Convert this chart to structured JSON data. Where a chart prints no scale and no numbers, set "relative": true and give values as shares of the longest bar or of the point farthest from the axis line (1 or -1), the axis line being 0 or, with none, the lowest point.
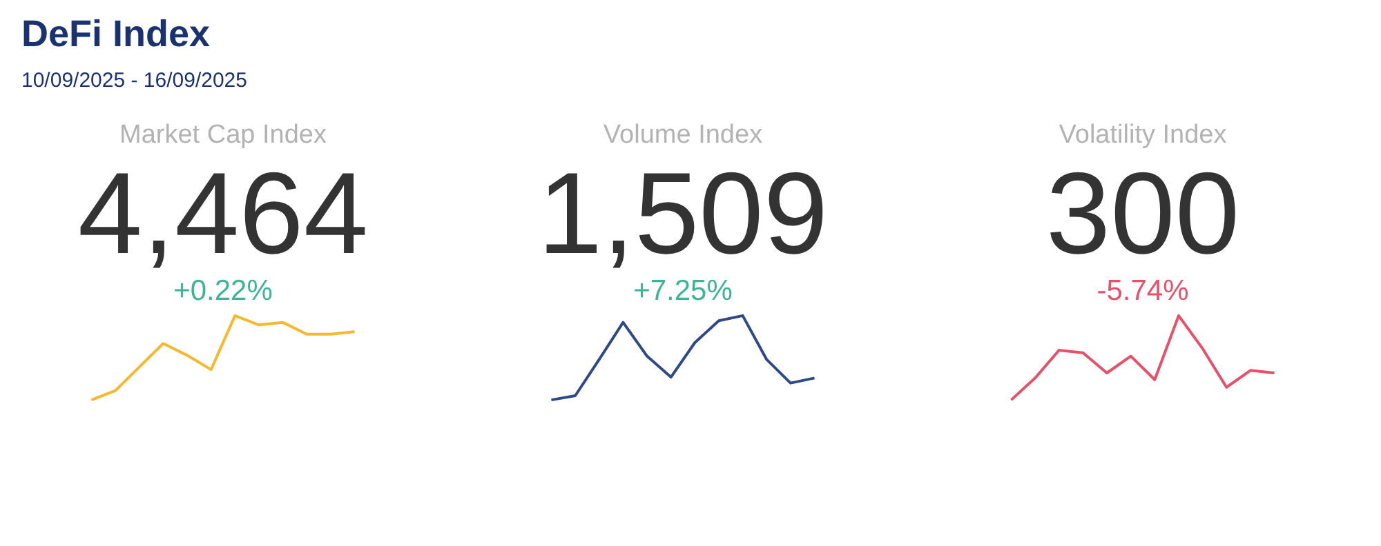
{
  "chart_data": [
    {
      "type": "other",
      "title": "DeFi Index",
      "subtitle": "10/09/2025 - 16/09/2025"
    },
    {
      "type": "line",
      "relative": true,
      "title": "Market Cap Index",
      "annotations": [
        "4,464",
        "+0.22%"
      ],
      "categories": [
        null,
        null,
        null,
        null,
        null,
        null,
        null,
        null,
        null,
        null,
        null,
        null
      ],
      "series": [
        {
          "color": "#f5b82e",
          "values": [
            0,
            0.11,
            0.39,
            0.67,
            0.53,
            0.36,
            1,
            0.89,
            0.92,
            0.78,
            0.78,
            0.81
          ]
        }
      ]
    },
    {
      "type": "line",
      "relative": true,
      "title": "Volume Index",
      "annotations": [
        "1,509",
        "+7.25%"
      ],
      "categories": [
        null,
        null,
        null,
        null,
        null,
        null,
        null,
        null,
        null,
        null,
        null,
        null
      ],
      "series": [
        {
          "color": "#2d4a87",
          "values": [
            0,
            0.05,
            0.48,
            0.92,
            0.52,
            0.27,
            0.68,
            0.94,
            1,
            0.48,
            0.2,
            0.26
          ]
        }
      ]
    },
    {
      "type": "line",
      "relative": true,
      "title": "Volatility Index",
      "annotations": [
        "300",
        "-5.74%"
      ],
      "categories": [
        null,
        null,
        null,
        null,
        null,
        null,
        null,
        null,
        null,
        null,
        null,
        null
      ],
      "series": [
        {
          "color": "#e8506a",
          "values": [
            0,
            0.26,
            0.59,
            0.56,
            0.32,
            0.52,
            0.24,
            1,
            0.61,
            0.15,
            0.35,
            0.32
          ]
        }
      ]
    }
  ]
}
